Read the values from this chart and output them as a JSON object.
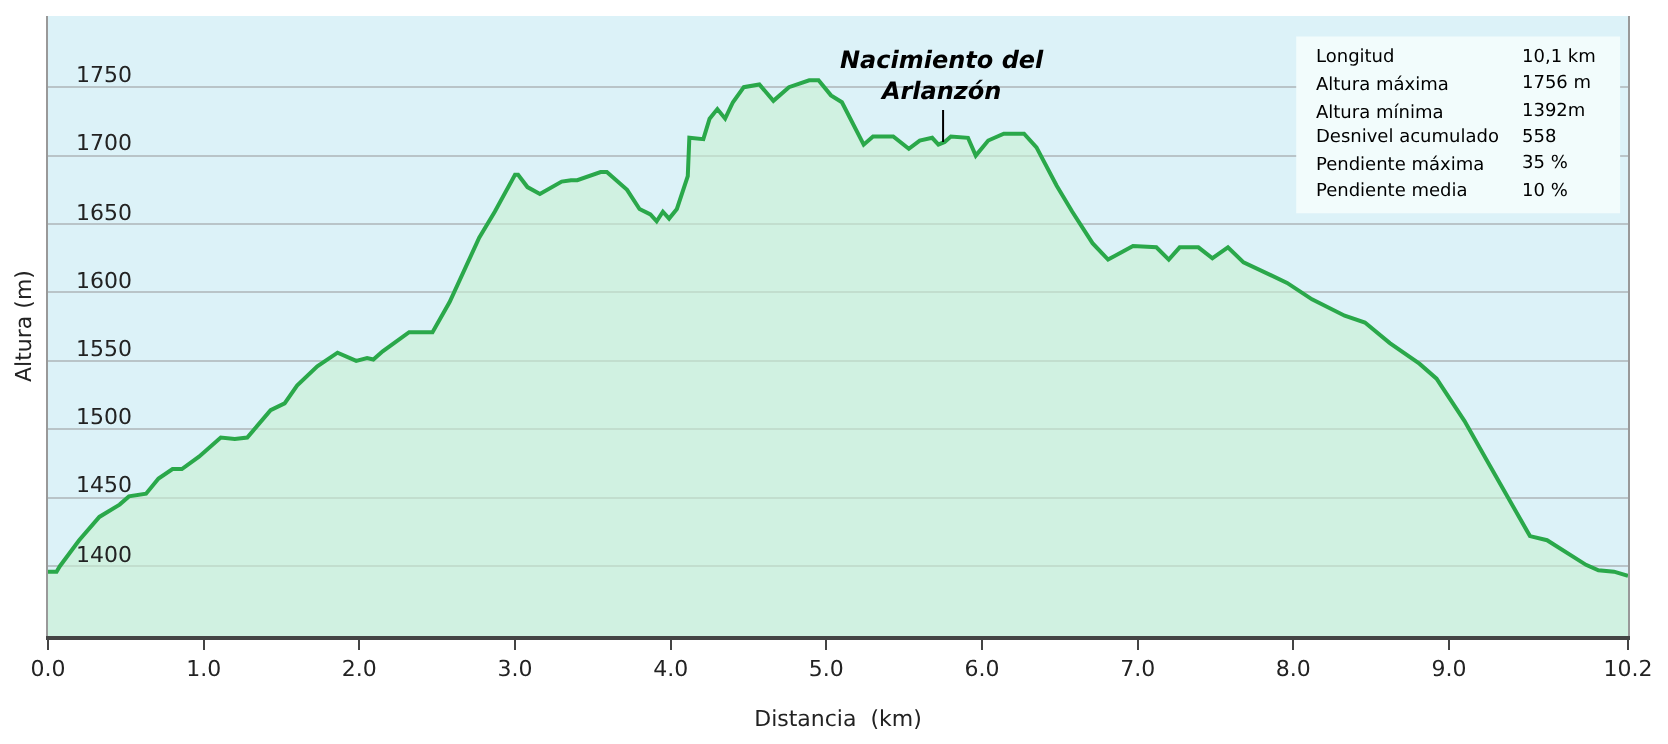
{
  "chart_data": {
    "type": "area",
    "xlabel": "Distancia  (km)",
    "ylabel": "Altura (m)",
    "x": [
      0,
      0.055,
      0.076,
      0.2,
      0.33,
      0.46,
      0.52,
      0.63,
      0.71,
      0.8,
      0.86,
      0.97,
      1.11,
      1.2,
      1.28,
      1.43,
      1.52,
      1.6,
      1.73,
      1.86,
      1.98,
      2.05,
      2.09,
      2.15,
      2.32,
      2.47,
      2.58,
      2.77,
      2.87,
      3.0,
      3.02,
      3.08,
      3.16,
      3.3,
      3.36,
      3.4,
      3.55,
      3.59,
      3.72,
      3.8,
      3.87,
      3.91,
      3.95,
      3.99,
      4.04,
      4.11,
      4.12,
      4.21,
      4.25,
      4.3,
      4.35,
      4.4,
      4.47,
      4.57,
      4.66,
      4.76,
      4.89,
      4.95,
      5.03,
      5.1,
      5.24,
      5.3,
      5.43,
      5.53,
      5.6,
      5.68,
      5.72,
      5.76,
      5.8,
      5.91,
      5.96,
      6.04,
      6.14,
      6.27,
      6.35,
      6.48,
      6.58,
      6.71,
      6.81,
      6.97,
      7.12,
      7.2,
      7.27,
      7.39,
      7.48,
      7.58,
      7.68,
      7.96,
      8.12,
      8.33,
      8.46,
      8.62,
      8.81,
      8.92,
      9.1,
      9.25,
      9.38,
      9.52,
      9.63,
      9.88,
      9.96,
      10.06,
      10.15
    ],
    "series": [
      {
        "color": "#2aa84a",
        "values": [
          1396,
          1396,
          1400,
          1419,
          1436,
          1445,
          1451,
          1453,
          1464,
          1471,
          1471,
          1480,
          1494,
          1493,
          1494,
          1514,
          1519,
          1532,
          1546,
          1556,
          1550,
          1552,
          1551,
          1557,
          1571,
          1571,
          1593,
          1640,
          1659,
          1686,
          1686,
          1677,
          1672,
          1681,
          1682,
          1682,
          1688,
          1688,
          1675,
          1661,
          1657,
          1652,
          1659,
          1654,
          1661,
          1685,
          1713,
          1712,
          1727,
          1734,
          1727,
          1739,
          1750,
          1752,
          1740,
          1750,
          1755,
          1755,
          1744,
          1739,
          1708,
          1714,
          1714,
          1705,
          1711,
          1713,
          1708,
          1710,
          1714,
          1713,
          1700,
          1711,
          1716,
          1716,
          1706,
          1678,
          1659,
          1636,
          1624,
          1634,
          1633,
          1624,
          1633,
          1633,
          1625,
          1633,
          1622,
          1607,
          1595,
          1583,
          1578,
          1563,
          1548,
          1537,
          1506,
          1476,
          1450,
          1422,
          1419,
          1401,
          1397,
          1396,
          1393
        ]
      }
    ],
    "xlim": [
      0,
      10.15
    ],
    "xticks": [
      {
        "value": 0,
        "label": "0.0"
      },
      {
        "value": 1,
        "label": "1.0"
      },
      {
        "value": 2,
        "label": "2.0"
      },
      {
        "value": 3,
        "label": "3.0"
      },
      {
        "value": 4,
        "label": "4.0"
      },
      {
        "value": 5,
        "label": "5.0"
      },
      {
        "value": 6,
        "label": "6.0"
      },
      {
        "value": 7,
        "label": "7.0"
      },
      {
        "value": 8,
        "label": "8.0"
      },
      {
        "value": 9,
        "label": "9.0"
      },
      {
        "value": 10.15,
        "label": "10.2"
      }
    ],
    "ylim": [
      1349,
      1802
    ],
    "yticks": [
      1400,
      1450,
      1500,
      1550,
      1600,
      1650,
      1700,
      1750
    ],
    "grid": "y",
    "marker": "none",
    "line_style": "solid",
    "annotations": [
      {
        "text": "Nacimiento del\nArlanzón",
        "x": 5.75,
        "y": 1710
      },
      "Longitud",
      "10,1 km",
      "Altura máxima",
      "1756 m",
      "Altura mínima",
      "1392m",
      "Desnivel acumulado",
      "558",
      "Pendiente máxima",
      "35 %",
      "Pendiente media",
      "10 %"
    ]
  }
}
